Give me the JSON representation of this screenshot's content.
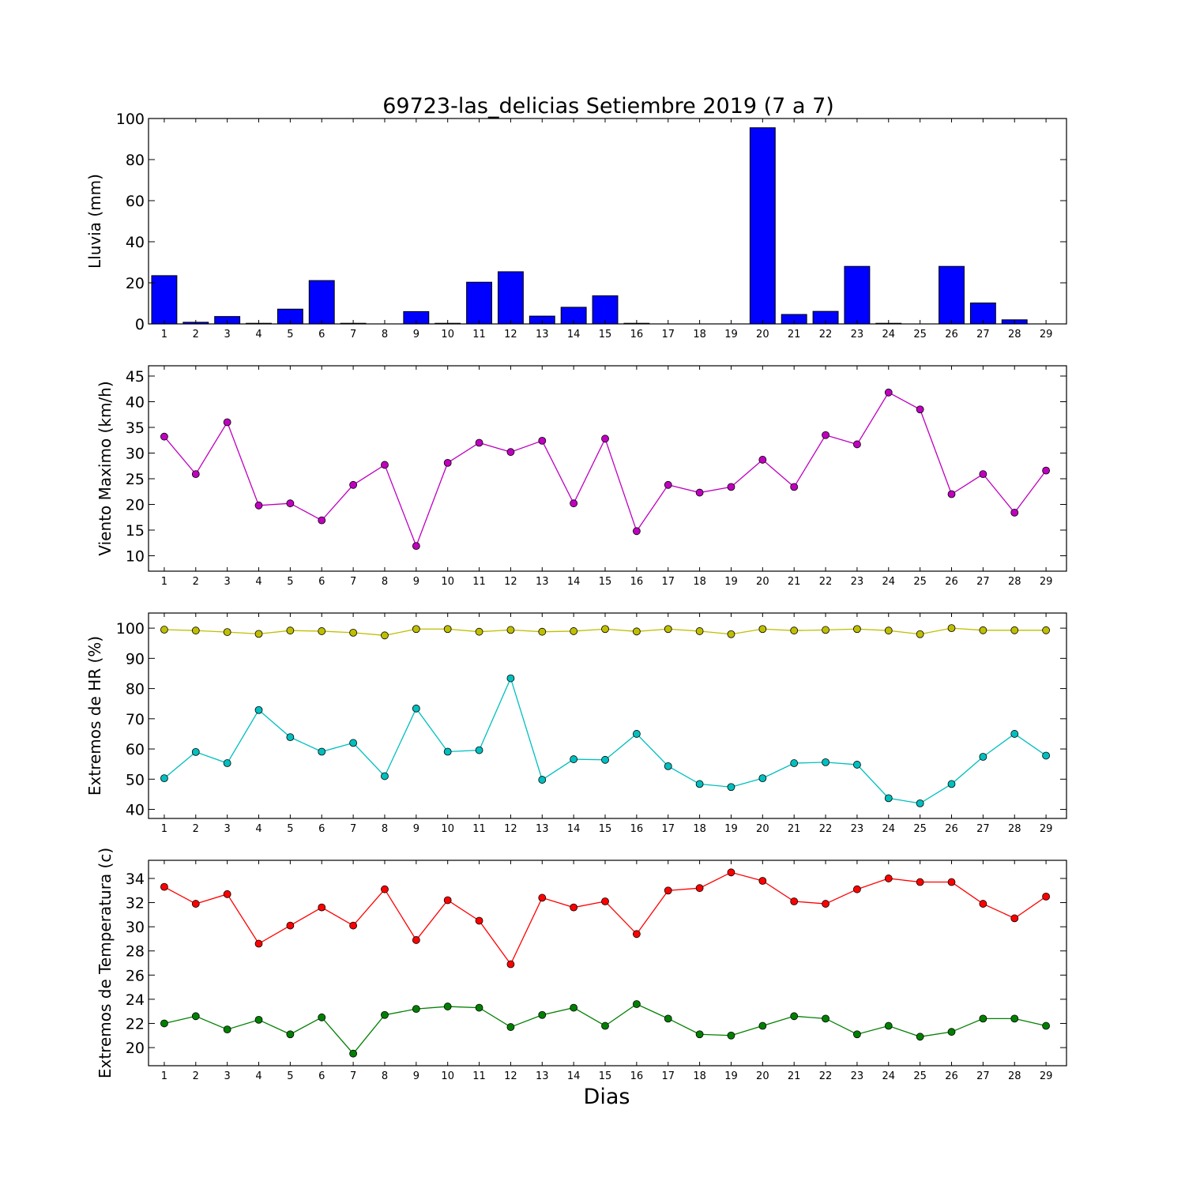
{
  "title": "69723-las_delicias Setiembre 2019  (7 a 7)",
  "xlabel": "Dias",
  "chart_data": [
    {
      "type": "bar",
      "ylabel": "Lluvia (mm)",
      "ylim": [
        0,
        100
      ],
      "yticks": [
        0,
        20,
        40,
        60,
        80,
        100
      ],
      "categories": [
        1,
        2,
        3,
        4,
        5,
        6,
        7,
        8,
        9,
        10,
        11,
        12,
        13,
        14,
        15,
        16,
        17,
        18,
        19,
        20,
        21,
        22,
        23,
        24,
        25,
        26,
        27,
        28,
        29
      ],
      "series": [
        {
          "color": "#0000ff",
          "values": [
            23.5,
            0.8,
            3.6,
            0.3,
            7.2,
            21.1,
            0.3,
            0,
            6.0,
            0.3,
            20.3,
            25.4,
            3.8,
            8.1,
            13.7,
            0.3,
            0,
            0,
            0,
            95.5,
            4.6,
            6.1,
            28.0,
            0.3,
            0,
            28.0,
            10.2,
            2.0,
            0
          ]
        }
      ]
    },
    {
      "type": "line",
      "ylabel": "Viento Maximo (km/h)",
      "ylim": [
        7,
        47
      ],
      "yticks": [
        10,
        15,
        20,
        25,
        30,
        35,
        40,
        45
      ],
      "x": [
        1,
        2,
        3,
        4,
        5,
        6,
        7,
        8,
        9,
        10,
        11,
        12,
        13,
        14,
        15,
        16,
        17,
        18,
        19,
        20,
        21,
        22,
        23,
        24,
        25,
        26,
        27,
        28,
        29
      ],
      "series": [
        {
          "color": "#bf00bf",
          "values": [
            33.2,
            25.9,
            36.0,
            19.8,
            20.2,
            16.9,
            23.8,
            27.7,
            11.9,
            28.1,
            32.0,
            30.2,
            32.4,
            20.2,
            32.8,
            14.8,
            23.8,
            22.3,
            23.4,
            28.7,
            23.4,
            33.5,
            31.7,
            41.8,
            38.5,
            22.0,
            25.9,
            18.4,
            26.6
          ]
        }
      ]
    },
    {
      "type": "line",
      "ylabel": "Extremos de HR (%)",
      "ylim": [
        37,
        105
      ],
      "yticks": [
        40,
        50,
        60,
        70,
        80,
        90,
        100
      ],
      "x": [
        1,
        2,
        3,
        4,
        5,
        6,
        7,
        8,
        9,
        10,
        11,
        12,
        13,
        14,
        15,
        16,
        17,
        18,
        19,
        20,
        21,
        22,
        23,
        24,
        25,
        26,
        27,
        28,
        29
      ],
      "series": [
        {
          "color": "#bfbf00",
          "values": [
            99.5,
            99.2,
            98.7,
            98.1,
            99.2,
            99.0,
            98.5,
            97.6,
            99.7,
            99.7,
            98.8,
            99.4,
            98.8,
            99.0,
            99.7,
            98.9,
            99.7,
            99.0,
            98.0,
            99.7,
            99.2,
            99.4,
            99.7,
            99.2,
            98.0,
            100.0,
            99.3,
            99.3,
            99.3
          ]
        },
        {
          "color": "#00bfbf",
          "values": [
            50.3,
            59.0,
            55.3,
            72.9,
            63.9,
            59.1,
            62.0,
            51.0,
            73.4,
            59.1,
            59.6,
            83.4,
            49.8,
            56.6,
            56.4,
            65.0,
            54.3,
            48.4,
            47.4,
            50.3,
            55.3,
            55.6,
            54.8,
            43.7,
            42.0,
            48.4,
            57.4,
            65.0,
            57.8
          ]
        }
      ]
    },
    {
      "type": "line",
      "ylabel": "Extremos de Temperatura (c)",
      "ylim": [
        18.5,
        35.5
      ],
      "yticks": [
        20,
        22,
        24,
        26,
        28,
        30,
        32,
        34
      ],
      "x": [
        1,
        2,
        3,
        4,
        5,
        6,
        7,
        8,
        9,
        10,
        11,
        12,
        13,
        14,
        15,
        16,
        17,
        18,
        19,
        20,
        21,
        22,
        23,
        24,
        25,
        26,
        27,
        28,
        29
      ],
      "series": [
        {
          "color": "#ff0000",
          "values": [
            33.3,
            31.9,
            32.7,
            28.6,
            30.1,
            31.6,
            30.1,
            33.1,
            28.9,
            32.2,
            30.5,
            26.9,
            32.4,
            31.6,
            32.1,
            29.4,
            33.0,
            33.2,
            34.5,
            33.8,
            32.1,
            31.9,
            33.1,
            34.0,
            33.7,
            33.7,
            31.9,
            30.7,
            32.5
          ]
        },
        {
          "color": "#008000",
          "values": [
            22.0,
            22.6,
            21.5,
            22.3,
            21.1,
            22.5,
            19.5,
            22.7,
            23.2,
            23.4,
            23.3,
            21.7,
            22.7,
            23.3,
            21.8,
            23.6,
            22.4,
            21.1,
            21.0,
            21.8,
            22.6,
            22.4,
            21.1,
            21.8,
            20.9,
            21.3,
            22.4,
            22.4,
            21.8
          ]
        }
      ]
    }
  ]
}
